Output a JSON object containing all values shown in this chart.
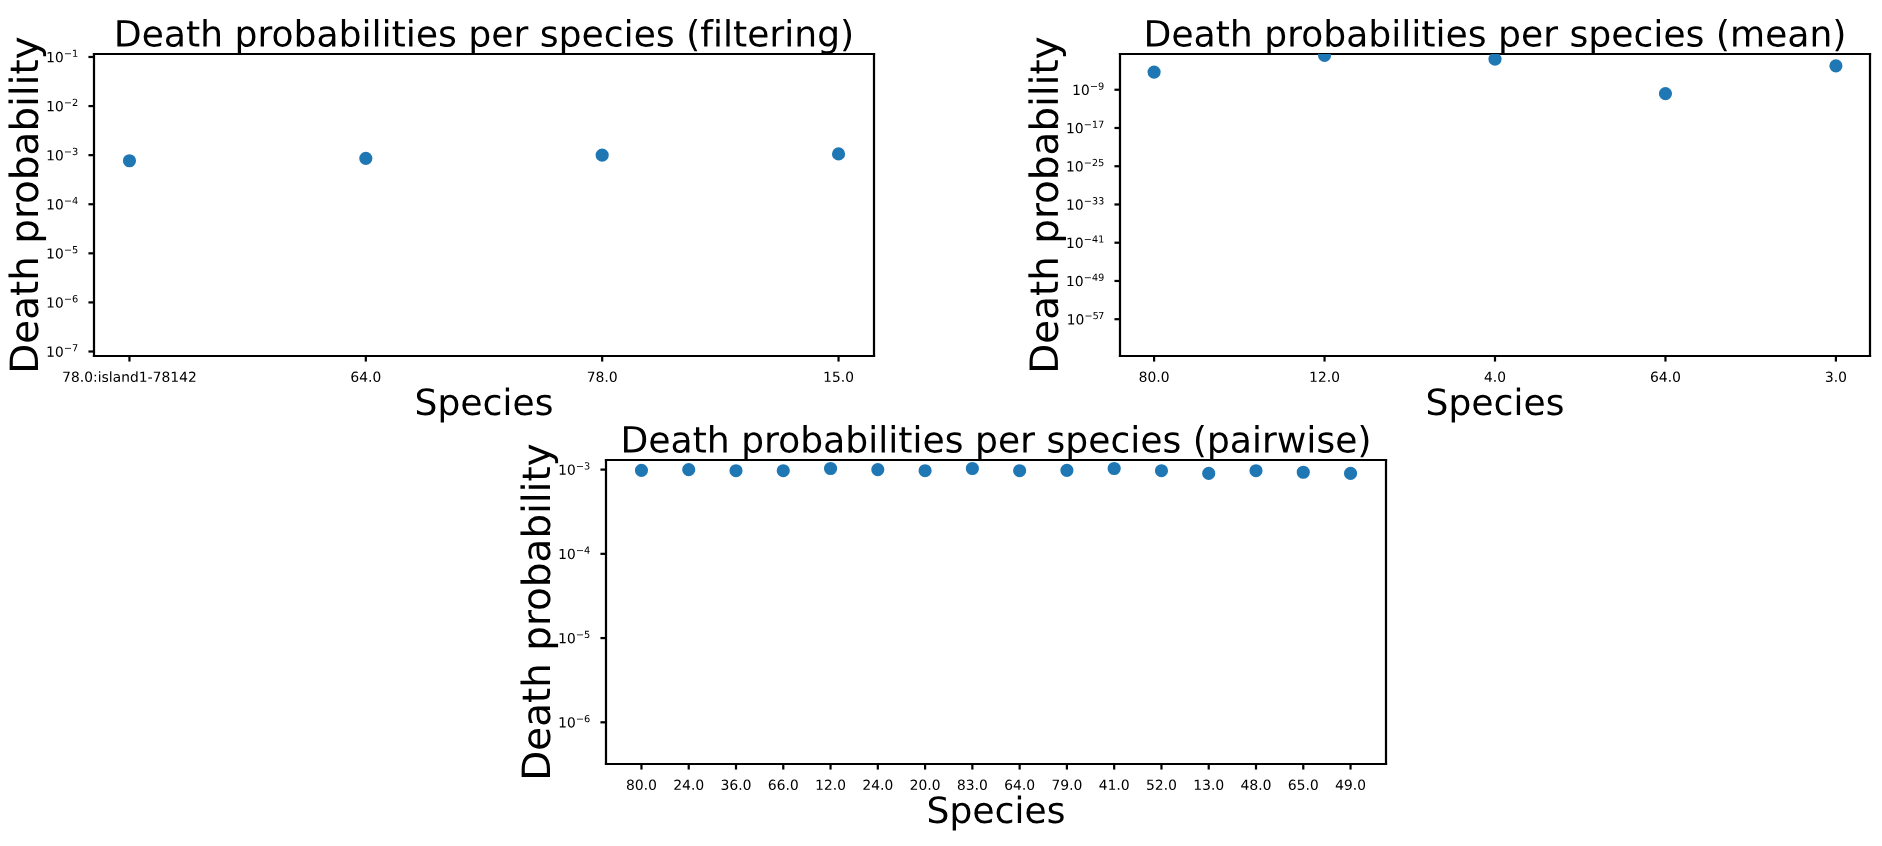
{
  "chart_data": [
    {
      "type": "scatter",
      "title": "Death probabilities per species (filtering)",
      "xlabel": "Species",
      "ylabel": "Death probability",
      "log": "y",
      "grid": false,
      "legend": false,
      "marker": "circle",
      "categories": [
        "78.0:island1-78142",
        "64.0",
        "78.0",
        "15.0"
      ],
      "series": [
        {
          "color": "#1f77b4",
          "values": [
            0.00077,
            0.00086,
            0.001,
            0.00106
          ]
        }
      ],
      "ylim": [
        8.1e-08,
        0.115
      ],
      "yticks": [
        {
          "value": 1e-07,
          "label": "10$^{−7}$"
        },
        {
          "value": 1e-06,
          "label": "10$^{−6}$"
        },
        {
          "value": 1e-05,
          "label": "10$^{−5}$"
        },
        {
          "value": 0.0001,
          "label": "10$^{−4}$"
        },
        {
          "value": 0.001,
          "label": "10$^{−3}$"
        },
        {
          "value": 0.01,
          "label": "10$^{−2}$"
        },
        {
          "value": 0.1,
          "label": "10$^{−1}$"
        }
      ]
    },
    {
      "type": "scatter",
      "title": "Death probabilities per species (mean)",
      "xlabel": "Species",
      "ylabel": "Death probability",
      "log": "y",
      "grid": false,
      "legend": false,
      "marker": "circle",
      "categories": [
        "80.0",
        "12.0",
        "4.0",
        "64.0",
        "3.0"
      ],
      "series": [
        {
          "color": "#1f77b4",
          "values": [
            5e-06,
            0.016,
            0.0025,
            1.6e-10,
            0.0001
          ]
        }
      ],
      "ylim": [
        2e-65,
        0.03
      ],
      "yticks": [
        {
          "value": 1e-57,
          "label": "10$^{−57}$"
        },
        {
          "value": 1e-49,
          "label": "10$^{−49}$"
        },
        {
          "value": 1e-41,
          "label": "10$^{−41}$"
        },
        {
          "value": 1e-33,
          "label": "10$^{−33}$"
        },
        {
          "value": 1e-25,
          "label": "10$^{−25}$"
        },
        {
          "value": 1e-17,
          "label": "10$^{−17}$"
        },
        {
          "value": 1e-09,
          "label": "10$^{−9}$"
        }
      ]
    },
    {
      "type": "scatter",
      "title": "Death probabilities per species (pairwise)",
      "xlabel": "Species",
      "ylabel": "Death probability",
      "log": "y",
      "grid": false,
      "legend": false,
      "marker": "circle",
      "categories": [
        "80.0",
        "24.0",
        "36.0",
        "66.0",
        "12.0",
        "24.0",
        "20.0",
        "83.0",
        "64.0",
        "79.0",
        "41.0",
        "52.0",
        "13.0",
        "48.0",
        "65.0",
        "49.0"
      ],
      "series": [
        {
          "color": "#1f77b4",
          "values": [
            0.00098,
            0.001,
            0.00097,
            0.00097,
            0.00103,
            0.001,
            0.00097,
            0.00103,
            0.00097,
            0.00098,
            0.00103,
            0.00097,
            0.0009,
            0.00097,
            0.00093,
            0.0009
          ]
        }
      ],
      "ylim": [
        3.2e-07,
        0.0013
      ],
      "yticks": [
        {
          "value": 1e-06,
          "label": "10$^{−6}$"
        },
        {
          "value": 1e-05,
          "label": "10$^{−5}$"
        },
        {
          "value": 0.0001,
          "label": "10$^{−4}$"
        },
        {
          "value": 0.001,
          "label": "10$^{−3}$"
        }
      ]
    }
  ]
}
